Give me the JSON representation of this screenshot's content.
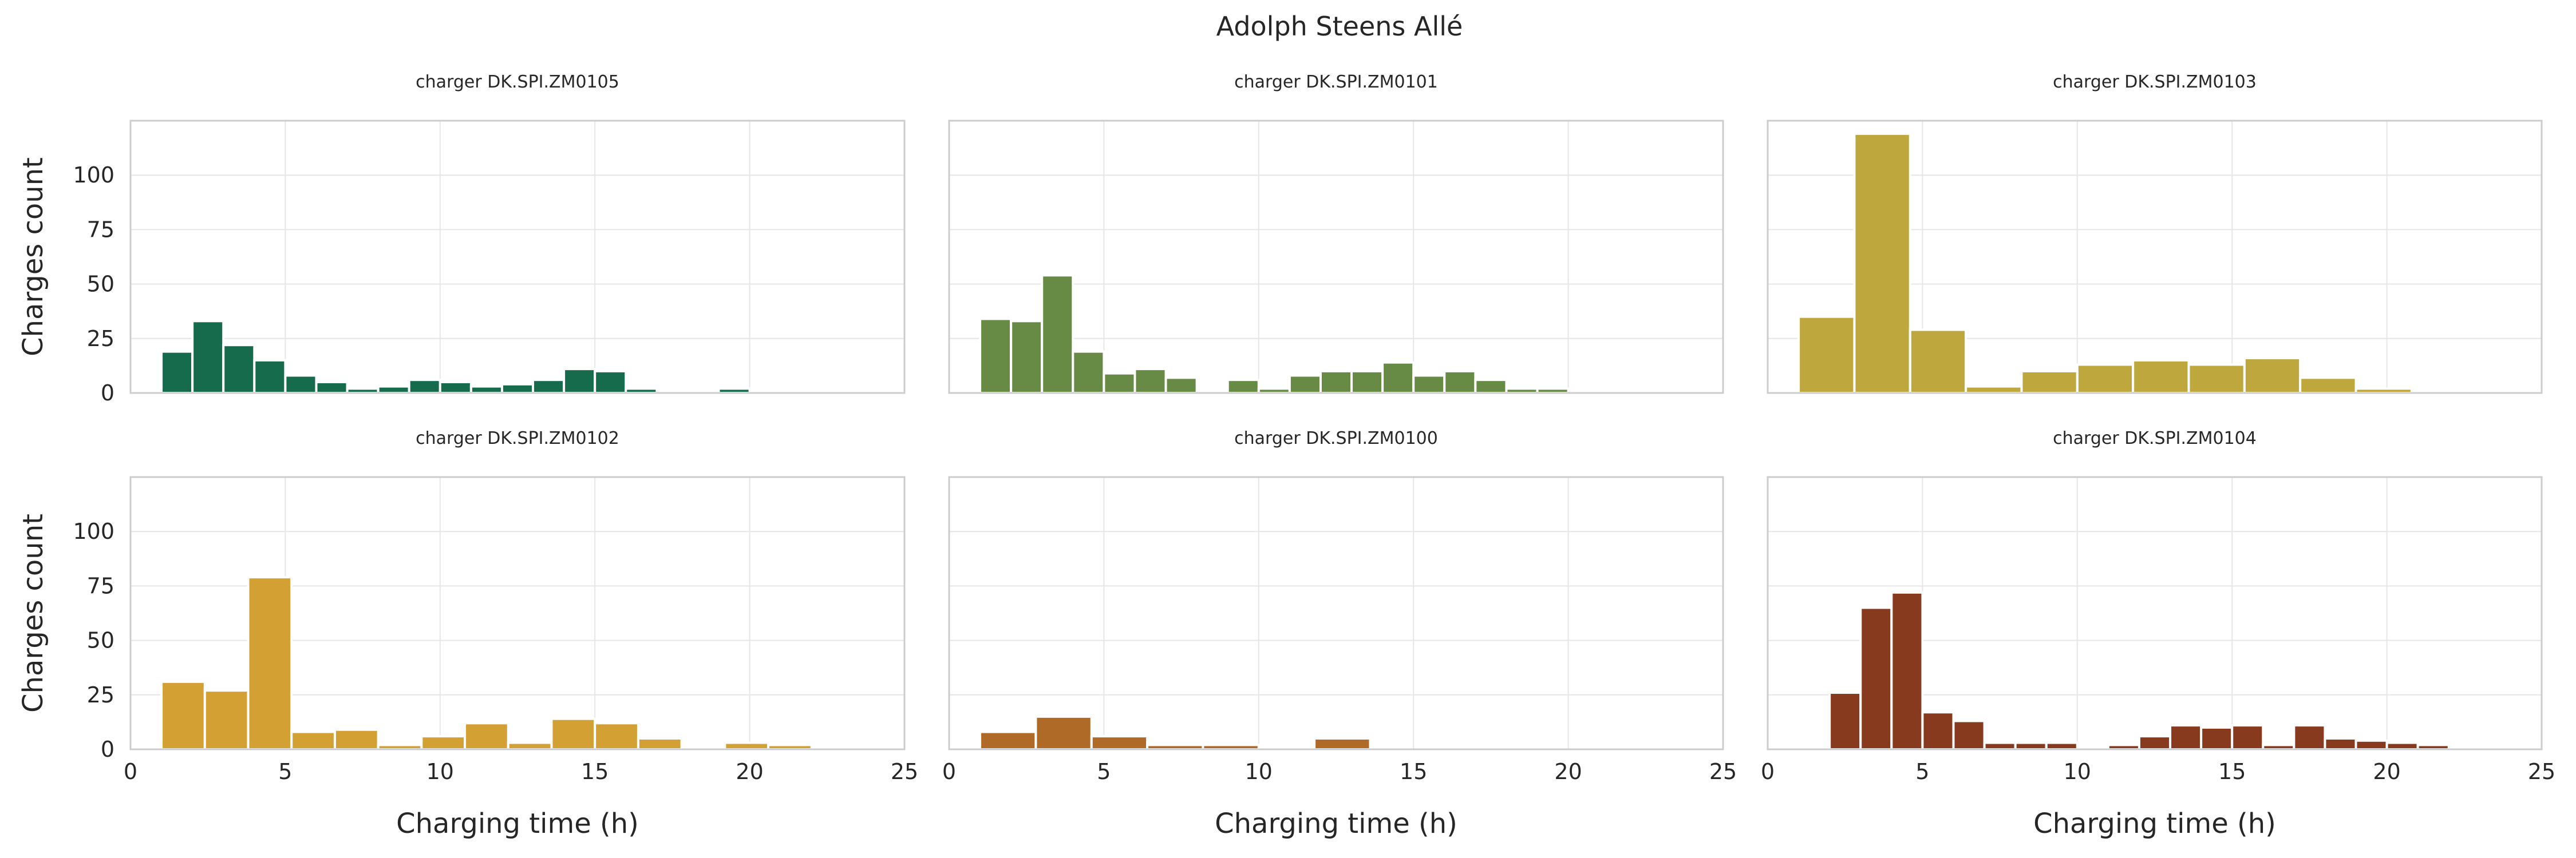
{
  "chart_data": {
    "type": "bar",
    "title": "Adolph Steens Allé",
    "xlabel": "Charging time (h)",
    "ylabel": "Charges count",
    "xlim": [
      0,
      25
    ],
    "ylim": [
      0,
      125
    ],
    "xticks": [
      "0",
      "5",
      "10",
      "15",
      "20",
      "25"
    ],
    "yticks": [
      "0",
      "25",
      "50",
      "75",
      "100"
    ],
    "grid": true,
    "panels": [
      {
        "title": "charger DK.SPI.ZM0105",
        "color": "#166b4d",
        "bins": [
          {
            "x0": 1.0,
            "x1": 2.0,
            "y": 19
          },
          {
            "x0": 2.0,
            "x1": 3.0,
            "y": 33
          },
          {
            "x0": 3.0,
            "x1": 4.0,
            "y": 22
          },
          {
            "x0": 4.0,
            "x1": 5.0,
            "y": 15
          },
          {
            "x0": 5.0,
            "x1": 6.0,
            "y": 8
          },
          {
            "x0": 6.0,
            "x1": 7.0,
            "y": 5
          },
          {
            "x0": 7.0,
            "x1": 8.0,
            "y": 2
          },
          {
            "x0": 8.0,
            "x1": 9.0,
            "y": 3
          },
          {
            "x0": 9.0,
            "x1": 10.0,
            "y": 6
          },
          {
            "x0": 10.0,
            "x1": 11.0,
            "y": 5
          },
          {
            "x0": 11.0,
            "x1": 12.0,
            "y": 3
          },
          {
            "x0": 12.0,
            "x1": 13.0,
            "y": 4
          },
          {
            "x0": 13.0,
            "x1": 14.0,
            "y": 6
          },
          {
            "x0": 14.0,
            "x1": 15.0,
            "y": 11
          },
          {
            "x0": 15.0,
            "x1": 16.0,
            "y": 10
          },
          {
            "x0": 16.0,
            "x1": 17.0,
            "y": 2
          },
          {
            "x0": 18.0,
            "x1": 19.0,
            "y": 1
          },
          {
            "x0": 19.0,
            "x1": 20.0,
            "y": 2
          }
        ]
      },
      {
        "title": "charger DK.SPI.ZM0101",
        "color": "#678a44",
        "bins": [
          {
            "x0": 1.0,
            "x1": 2.0,
            "y": 34
          },
          {
            "x0": 2.0,
            "x1": 3.0,
            "y": 33
          },
          {
            "x0": 3.0,
            "x1": 4.0,
            "y": 54
          },
          {
            "x0": 4.0,
            "x1": 5.0,
            "y": 19
          },
          {
            "x0": 5.0,
            "x1": 6.0,
            "y": 9
          },
          {
            "x0": 6.0,
            "x1": 7.0,
            "y": 11
          },
          {
            "x0": 7.0,
            "x1": 8.0,
            "y": 7
          },
          {
            "x0": 9.0,
            "x1": 10.0,
            "y": 6
          },
          {
            "x0": 10.0,
            "x1": 11.0,
            "y": 2
          },
          {
            "x0": 11.0,
            "x1": 12.0,
            "y": 8
          },
          {
            "x0": 12.0,
            "x1": 13.0,
            "y": 10
          },
          {
            "x0": 13.0,
            "x1": 14.0,
            "y": 10
          },
          {
            "x0": 14.0,
            "x1": 15.0,
            "y": 14
          },
          {
            "x0": 15.0,
            "x1": 16.0,
            "y": 8
          },
          {
            "x0": 16.0,
            "x1": 17.0,
            "y": 10
          },
          {
            "x0": 17.0,
            "x1": 18.0,
            "y": 6
          },
          {
            "x0": 18.0,
            "x1": 19.0,
            "y": 2
          },
          {
            "x0": 19.0,
            "x1": 20.0,
            "y": 2
          }
        ]
      },
      {
        "title": "charger DK.SPI.ZM0103",
        "color": "#bea73d",
        "bins": [
          {
            "x0": 1.0,
            "x1": 2.8,
            "y": 35
          },
          {
            "x0": 2.8,
            "x1": 4.6,
            "y": 119
          },
          {
            "x0": 4.6,
            "x1": 6.4,
            "y": 29
          },
          {
            "x0": 6.4,
            "x1": 8.2,
            "y": 3
          },
          {
            "x0": 8.2,
            "x1": 10.0,
            "y": 10
          },
          {
            "x0": 10.0,
            "x1": 11.8,
            "y": 13
          },
          {
            "x0": 11.8,
            "x1": 13.6,
            "y": 15
          },
          {
            "x0": 13.6,
            "x1": 15.4,
            "y": 13
          },
          {
            "x0": 15.4,
            "x1": 17.2,
            "y": 16
          },
          {
            "x0": 17.2,
            "x1": 19.0,
            "y": 7
          },
          {
            "x0": 19.0,
            "x1": 20.8,
            "y": 2
          }
        ]
      },
      {
        "title": "charger DK.SPI.ZM0102",
        "color": "#d3a033",
        "bins": [
          {
            "x0": 1.0,
            "x1": 2.4,
            "y": 31
          },
          {
            "x0": 2.4,
            "x1": 3.8,
            "y": 27
          },
          {
            "x0": 3.8,
            "x1": 5.2,
            "y": 79
          },
          {
            "x0": 5.2,
            "x1": 6.6,
            "y": 8
          },
          {
            "x0": 6.6,
            "x1": 8.0,
            "y": 9
          },
          {
            "x0": 8.0,
            "x1": 9.4,
            "y": 2
          },
          {
            "x0": 9.4,
            "x1": 10.8,
            "y": 6
          },
          {
            "x0": 10.8,
            "x1": 12.2,
            "y": 12
          },
          {
            "x0": 12.2,
            "x1": 13.6,
            "y": 3
          },
          {
            "x0": 13.6,
            "x1": 15.0,
            "y": 14
          },
          {
            "x0": 15.0,
            "x1": 16.4,
            "y": 12
          },
          {
            "x0": 16.4,
            "x1": 17.8,
            "y": 5
          },
          {
            "x0": 19.2,
            "x1": 20.6,
            "y": 3
          },
          {
            "x0": 20.6,
            "x1": 22.0,
            "y": 2
          }
        ]
      },
      {
        "title": "charger DK.SPI.ZM0100",
        "color": "#b06a28",
        "bins": [
          {
            "x0": 1.0,
            "x1": 2.8,
            "y": 8
          },
          {
            "x0": 2.8,
            "x1": 4.6,
            "y": 15
          },
          {
            "x0": 4.6,
            "x1": 6.4,
            "y": 6
          },
          {
            "x0": 6.4,
            "x1": 8.2,
            "y": 2
          },
          {
            "x0": 8.2,
            "x1": 10.0,
            "y": 2
          },
          {
            "x0": 11.8,
            "x1": 13.6,
            "y": 5
          }
        ]
      },
      {
        "title": "charger DK.SPI.ZM0104",
        "color": "#873a1d",
        "bins": [
          {
            "x0": 2.0,
            "x1": 3.0,
            "y": 26
          },
          {
            "x0": 3.0,
            "x1": 4.0,
            "y": 65
          },
          {
            "x0": 4.0,
            "x1": 5.0,
            "y": 72
          },
          {
            "x0": 5.0,
            "x1": 6.0,
            "y": 17
          },
          {
            "x0": 6.0,
            "x1": 7.0,
            "y": 13
          },
          {
            "x0": 7.0,
            "x1": 8.0,
            "y": 3
          },
          {
            "x0": 8.0,
            "x1": 9.0,
            "y": 3
          },
          {
            "x0": 9.0,
            "x1": 10.0,
            "y": 3
          },
          {
            "x0": 11.0,
            "x1": 12.0,
            "y": 2
          },
          {
            "x0": 12.0,
            "x1": 13.0,
            "y": 6
          },
          {
            "x0": 13.0,
            "x1": 14.0,
            "y": 11
          },
          {
            "x0": 14.0,
            "x1": 15.0,
            "y": 10
          },
          {
            "x0": 15.0,
            "x1": 16.0,
            "y": 11
          },
          {
            "x0": 16.0,
            "x1": 17.0,
            "y": 2
          },
          {
            "x0": 17.0,
            "x1": 18.0,
            "y": 11
          },
          {
            "x0": 18.0,
            "x1": 19.0,
            "y": 5
          },
          {
            "x0": 19.0,
            "x1": 20.0,
            "y": 4
          },
          {
            "x0": 20.0,
            "x1": 21.0,
            "y": 3
          },
          {
            "x0": 21.0,
            "x1": 22.0,
            "y": 2
          }
        ]
      }
    ]
  }
}
